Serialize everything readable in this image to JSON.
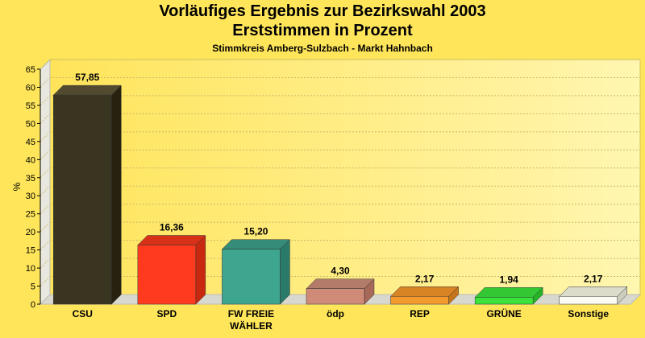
{
  "chart_data": {
    "type": "bar",
    "title": "Vorläufiges Ergebnis zur Bezirkswahl 2003",
    "title_line2": "Erststimmen in Prozent",
    "subtitle": "Stimmkreis Amberg-Sulzbach - Markt Hahnbach",
    "xlabel": "",
    "ylabel": "%",
    "ylim": [
      0,
      65
    ],
    "yticks": [
      0,
      5,
      10,
      15,
      20,
      25,
      30,
      35,
      40,
      45,
      50,
      55,
      60,
      65
    ],
    "grid": true,
    "categories": [
      [
        "CSU"
      ],
      [
        "SPD"
      ],
      [
        "FW FREIE",
        "WÄHLER"
      ],
      [
        "ödp"
      ],
      [
        "REP"
      ],
      [
        "GRÜNE"
      ],
      [
        "Sonstige"
      ]
    ],
    "values": [
      57.85,
      16.36,
      15.2,
      4.3,
      2.17,
      1.94,
      2.17
    ],
    "value_labels": [
      "57,85",
      "16,36",
      "15,20",
      "4,30",
      "2,17",
      "1,94",
      "2,17"
    ],
    "colors": [
      "#3a3520",
      "#ff3a1e",
      "#3ea58e",
      "#cf8a78",
      "#f39a2e",
      "#3be33b",
      "#fbfbf1"
    ],
    "side_colors": [
      "#27220f",
      "#c92810",
      "#2a7a69",
      "#a66859",
      "#c6741a",
      "#26b426",
      "#cdcdbd"
    ],
    "top_colors": [
      "#514a2f",
      "#d73218",
      "#358c78",
      "#b37b69",
      "#d98424",
      "#33c733",
      "#dcdccb"
    ]
  }
}
